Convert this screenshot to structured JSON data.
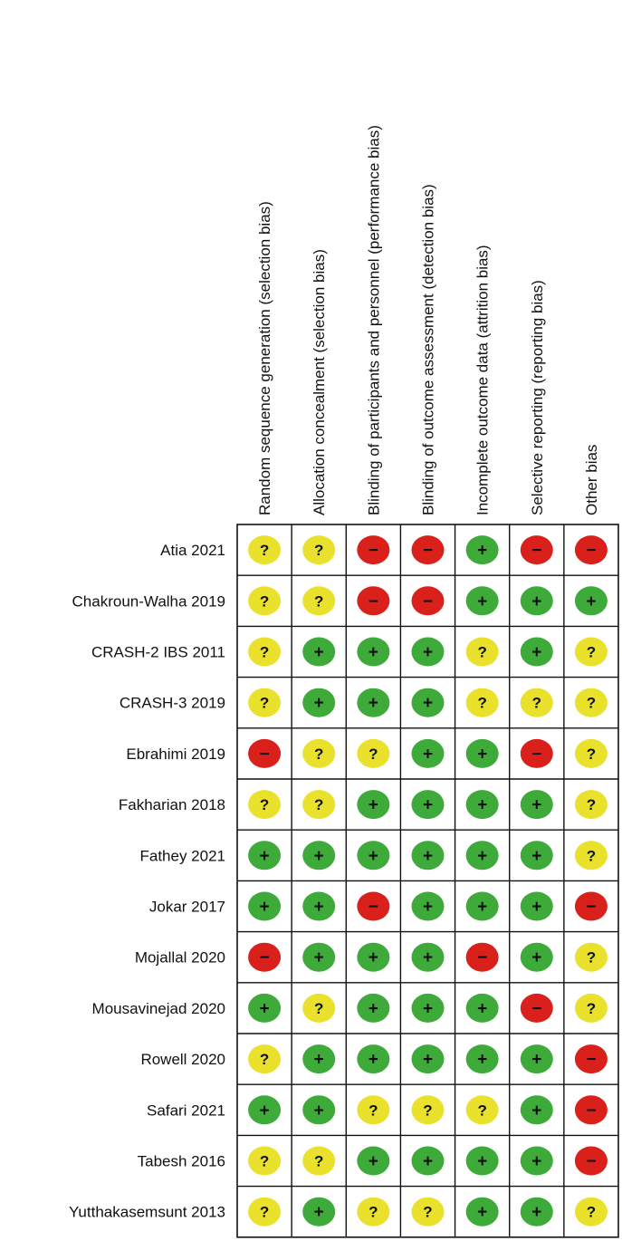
{
  "chart_data": {
    "type": "table",
    "title": "",
    "domains": [
      "Random sequence generation (selection bias)",
      "Allocation concealment (selection bias)",
      "Blinding of participants and personnel (performance bias)",
      "Blinding of outcome assessment (detection bias)",
      "Incomplete outcome data (attrition bias)",
      "Selective reporting (reporting bias)",
      "Other bias"
    ],
    "studies": [
      {
        "name": "Atia 2021",
        "ratings": [
          "unclear",
          "unclear",
          "high",
          "high",
          "low",
          "high",
          "high"
        ]
      },
      {
        "name": "Chakroun-Walha 2019",
        "ratings": [
          "unclear",
          "unclear",
          "high",
          "high",
          "low",
          "low",
          "low"
        ]
      },
      {
        "name": "CRASH-2 IBS 2011",
        "ratings": [
          "unclear",
          "low",
          "low",
          "low",
          "unclear",
          "low",
          "unclear"
        ]
      },
      {
        "name": "CRASH-3 2019",
        "ratings": [
          "unclear",
          "low",
          "low",
          "low",
          "unclear",
          "unclear",
          "unclear"
        ]
      },
      {
        "name": "Ebrahimi 2019",
        "ratings": [
          "high",
          "unclear",
          "unclear",
          "low",
          "low",
          "high",
          "unclear"
        ]
      },
      {
        "name": "Fakharian 2018",
        "ratings": [
          "unclear",
          "unclear",
          "low",
          "low",
          "low",
          "low",
          "unclear"
        ]
      },
      {
        "name": "Fathey 2021",
        "ratings": [
          "low",
          "low",
          "low",
          "low",
          "low",
          "low",
          "unclear"
        ]
      },
      {
        "name": "Jokar 2017",
        "ratings": [
          "low",
          "low",
          "high",
          "low",
          "low",
          "low",
          "high"
        ]
      },
      {
        "name": "Mojallal 2020",
        "ratings": [
          "high",
          "low",
          "low",
          "low",
          "high",
          "low",
          "unclear"
        ]
      },
      {
        "name": "Mousavinejad 2020",
        "ratings": [
          "low",
          "unclear",
          "low",
          "low",
          "low",
          "high",
          "unclear"
        ]
      },
      {
        "name": "Rowell 2020",
        "ratings": [
          "unclear",
          "low",
          "low",
          "low",
          "low",
          "low",
          "high"
        ]
      },
      {
        "name": "Safari 2021",
        "ratings": [
          "low",
          "low",
          "unclear",
          "unclear",
          "unclear",
          "low",
          "high"
        ]
      },
      {
        "name": "Tabesh 2016",
        "ratings": [
          "unclear",
          "unclear",
          "low",
          "low",
          "low",
          "low",
          "high"
        ]
      },
      {
        "name": "Yutthakasemsunt 2013",
        "ratings": [
          "unclear",
          "low",
          "unclear",
          "unclear",
          "low",
          "low",
          "unclear"
        ]
      }
    ],
    "legend": {
      "low": {
        "symbol": "+",
        "color": "#3daa3a"
      },
      "unclear": {
        "symbol": "?",
        "color": "#e9e12b"
      },
      "high": {
        "symbol": "−",
        "color": "#d9201b"
      }
    }
  }
}
